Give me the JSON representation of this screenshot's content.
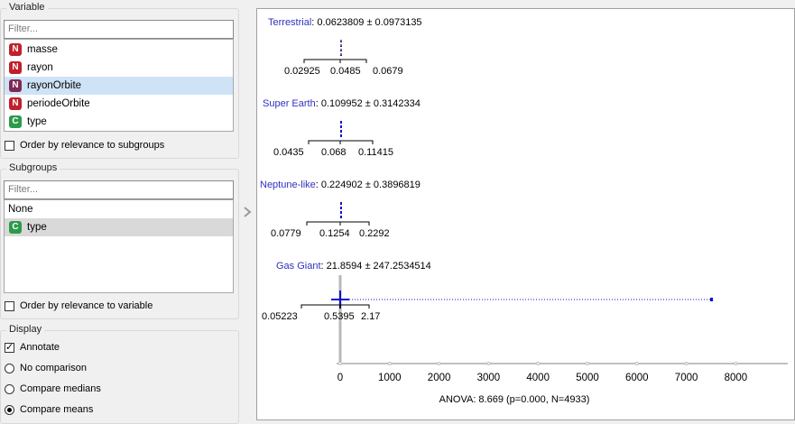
{
  "variable": {
    "title": "Variable",
    "filter_placeholder": "Filter...",
    "items": [
      {
        "label": "masse",
        "type": "N"
      },
      {
        "label": "rayon",
        "type": "N"
      },
      {
        "label": "rayonOrbite",
        "type": "N"
      },
      {
        "label": "periodeOrbite",
        "type": "N"
      },
      {
        "label": "type",
        "type": "C"
      }
    ],
    "order_label": "Order by relevance to subgroups"
  },
  "subgroups": {
    "title": "Subgroups",
    "filter_placeholder": "Filter...",
    "items": [
      {
        "label": "None"
      },
      {
        "label": "type",
        "type": "C"
      }
    ],
    "order_label": "Order by relevance to variable"
  },
  "display": {
    "title": "Display",
    "annotate_label": "Annotate",
    "options": [
      "No comparison",
      "Compare medians",
      "Compare means"
    ],
    "selected": "Compare means"
  },
  "colors": {
    "accent": "#1010d0",
    "label_blue": "#3030c0",
    "median": "#f2c400"
  },
  "chart_data": {
    "type": "box",
    "groups": [
      {
        "name": "Terrestrial",
        "summary": "0.0623809 ± 0.0973135",
        "mean": 0.0623809,
        "sd": 0.0973135,
        "q1": 0.02925,
        "median": 0.0485,
        "q3": 0.0679,
        "q1_label": "0.02925",
        "median_label": "0.0485",
        "q3_label": "0.0679"
      },
      {
        "name": "Super Earth",
        "summary": "0.109952 ± 0.3142334",
        "mean": 0.109952,
        "sd": 0.3142334,
        "q1": 0.0435,
        "median": 0.068,
        "q3": 0.11415,
        "q1_label": "0.0435",
        "median_label": "0.068",
        "q3_label": "0.11415"
      },
      {
        "name": "Neptune-like",
        "summary": "0.224902 ± 0.3896819",
        "mean": 0.224902,
        "sd": 0.3896819,
        "q1": 0.0779,
        "median": 0.1254,
        "q3": 0.2292,
        "q1_label": "0.0779",
        "median_label": "0.1254",
        "q3_label": "0.2292"
      },
      {
        "name": "Gas Giant",
        "summary": "21.8594 ± 247.2534514",
        "mean": 21.8594,
        "sd": 247.2534514,
        "q1": 0.05223,
        "median": 0.5395,
        "q3": 2.17,
        "max": 7500,
        "q1_label": "0.05223",
        "median_label": "0.5395",
        "q3_label": "2.17"
      }
    ],
    "xticks": [
      "0",
      "1000",
      "2000",
      "3000",
      "4000",
      "5000",
      "6000",
      "7000",
      "8000"
    ],
    "xlim": [
      0,
      9000
    ],
    "footer": "ANOVA: 8.669 (p=0.000, N=4933)"
  }
}
